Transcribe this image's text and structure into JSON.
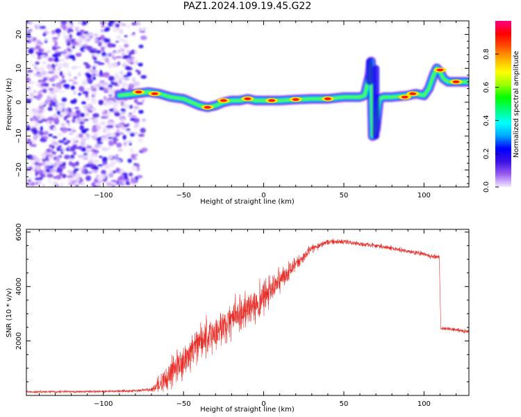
{
  "title": "PAZ1.2024.109.19.45.G22",
  "chart_data": [
    {
      "type": "heatmap",
      "panel": "spectrogram",
      "xlabel": "Height of straight line (km)",
      "ylabel": "Frequency (Hz)",
      "xlim": [
        -148,
        128
      ],
      "ylim": [
        -25,
        24
      ],
      "x_ticks": [
        -100,
        -50,
        0,
        50,
        100
      ],
      "y_ticks": [
        -20,
        -10,
        0,
        10,
        20
      ],
      "colorbar": {
        "label": "Normalized spectral amplitude",
        "range": [
          0,
          1
        ],
        "ticks": [
          0.0,
          0.2,
          0.4,
          0.6,
          0.8
        ],
        "tick_labels": [
          "0.0",
          "0.2",
          "0.4",
          "0.6",
          "0.8"
        ],
        "colormap": [
          "#f3e8ff",
          "#9a5cf0",
          "#3a10e6",
          "#0000ff",
          "#00a8ff",
          "#00ffff",
          "#00ff80",
          "#00ff00",
          "#9cff00",
          "#ffff00",
          "#ffb000",
          "#ff5000",
          "#ff0000",
          "#ff0080"
        ]
      },
      "noise_region_x": [
        -148,
        -72
      ],
      "ridge": {
        "x": [
          -90,
          -80,
          -72,
          -65,
          -58,
          -50,
          -45,
          -40,
          -35,
          -30,
          -25,
          -20,
          -15,
          -10,
          -5,
          0,
          10,
          20,
          30,
          40,
          50,
          60,
          63,
          66,
          67,
          68,
          70,
          72,
          75,
          80,
          90,
          95,
          100,
          103,
          106,
          108,
          110,
          112,
          115,
          120,
          128
        ],
        "y": [
          2,
          2.5,
          3,
          2.5,
          1.5,
          1,
          0,
          -1,
          -1.5,
          -1,
          0,
          0.5,
          0.5,
          1,
          0.5,
          0.5,
          0.5,
          0.8,
          1,
          1,
          1.5,
          1.5,
          2,
          8,
          12,
          -10,
          -8,
          1,
          1.5,
          1.5,
          2,
          2.5,
          2,
          4,
          8,
          10,
          9,
          7,
          6,
          6,
          6
        ]
      },
      "peaks": [
        {
          "x": -78,
          "y": 3
        },
        {
          "x": -68,
          "y": 2.5
        },
        {
          "x": -35,
          "y": -1.5
        },
        {
          "x": -25,
          "y": 0.5
        },
        {
          "x": -10,
          "y": 1
        },
        {
          "x": 5,
          "y": 0.5
        },
        {
          "x": 20,
          "y": 0.8
        },
        {
          "x": 40,
          "y": 1
        },
        {
          "x": 88,
          "y": 1.5
        },
        {
          "x": 93,
          "y": 2.5
        },
        {
          "x": 110,
          "y": 9.5
        },
        {
          "x": 120,
          "y": 6
        }
      ]
    },
    {
      "type": "line",
      "panel": "snr",
      "xlabel": "Height of straight line (km)",
      "ylabel": "SNR (10 * v/v)",
      "xlim": [
        -148,
        128
      ],
      "ylim": [
        0,
        6100
      ],
      "x_ticks": [
        -100,
        -50,
        0,
        50,
        100
      ],
      "y_ticks": [
        2000,
        4000,
        6000
      ],
      "color": "#e8302a",
      "envelope": {
        "x": [
          -148,
          -100,
          -80,
          -70,
          -66,
          -60,
          -50,
          -40,
          -30,
          -20,
          -10,
          0,
          10,
          20,
          30,
          40,
          50,
          60,
          70,
          80,
          90,
          100,
          105,
          109.5,
          110.5,
          115,
          120,
          128
        ],
        "mean": [
          130,
          150,
          170,
          220,
          350,
          700,
          1300,
          1900,
          2300,
          2800,
          3200,
          3600,
          4200,
          4800,
          5400,
          5650,
          5650,
          5550,
          5500,
          5400,
          5300,
          5200,
          5100,
          5100,
          2450,
          2450,
          2400,
          2350
        ],
        "spread": [
          60,
          60,
          70,
          90,
          400,
          700,
          900,
          900,
          900,
          900,
          900,
          800,
          600,
          350,
          200,
          150,
          120,
          120,
          120,
          120,
          120,
          120,
          120,
          120,
          100,
          100,
          100,
          100
        ]
      }
    }
  ]
}
